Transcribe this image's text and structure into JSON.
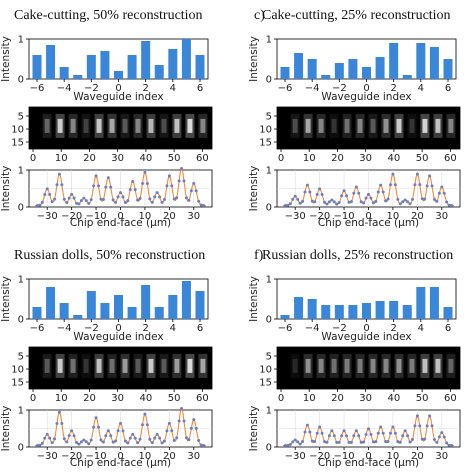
{
  "chart_data": [
    {
      "panel_label": "",
      "title": "Cake-cutting,  50% reconstruction",
      "type": "bar",
      "bar": {
        "x": [
          -6,
          -5,
          -4,
          -3,
          -2,
          -1,
          0,
          1,
          2,
          3,
          4,
          5,
          6
        ],
        "values": [
          0.6,
          0.85,
          0.3,
          0.1,
          0.6,
          0.7,
          0.2,
          0.6,
          0.95,
          0.35,
          0.75,
          1.0,
          0.6
        ],
        "xlabel": "Waveguide index",
        "ylabel": "Intensity",
        "ylim": [
          0,
          1
        ],
        "xticks": [
          "-6",
          "-4",
          "-2",
          "0",
          "2",
          "4",
          "6"
        ],
        "yticks": [
          "0",
          "1"
        ]
      },
      "image": {
        "type": "heatmap",
        "columns": [
          0.4,
          0.92,
          0.55,
          0.25,
          0.88,
          0.7,
          0.35,
          0.55,
          0.8,
          0.3,
          0.85,
          1.0,
          0.55
        ],
        "xticks": [
          "0",
          "10",
          "20",
          "30",
          "40",
          "50",
          "60"
        ],
        "yticks": [
          "5",
          "10",
          "15"
        ]
      },
      "profile": {
        "type": "line",
        "xlabel": "Chip end-face (μm)",
        "ylabel": "Intensity",
        "ylim": [
          0,
          1
        ],
        "xticks": [
          "-30",
          "-20",
          "-10",
          "0",
          "10",
          "20",
          "30"
        ],
        "yticks": [
          "0",
          "1"
        ],
        "peaks": [
          {
            "x": -30,
            "value": 0.45
          },
          {
            "x": -25,
            "value": 0.85
          },
          {
            "x": -20,
            "value": 0.3
          },
          {
            "x": -15,
            "value": 0.2
          },
          {
            "x": -10,
            "value": 0.8
          },
          {
            "x": -5,
            "value": 0.75
          },
          {
            "x": 0,
            "value": 0.35
          },
          {
            "x": 5,
            "value": 0.65
          },
          {
            "x": 10,
            "value": 0.9
          },
          {
            "x": 15,
            "value": 0.35
          },
          {
            "x": 20,
            "value": 0.8
          },
          {
            "x": 25,
            "value": 1.0
          },
          {
            "x": 30,
            "value": 0.6
          }
        ]
      }
    },
    {
      "panel_label": "c)",
      "title": "Cake-cutting,  25% reconstruction",
      "type": "bar",
      "bar": {
        "x": [
          -6,
          -5,
          -4,
          -3,
          -2,
          -1,
          0,
          1,
          2,
          3,
          4,
          5,
          6
        ],
        "values": [
          0.3,
          0.65,
          0.5,
          0.1,
          0.4,
          0.5,
          0.3,
          0.55,
          0.9,
          0.1,
          0.9,
          0.8,
          0.5
        ],
        "xlabel": "Waveguide index",
        "ylabel": "Intensity",
        "ylim": [
          0,
          1
        ],
        "xticks": [
          "-6",
          "-4",
          "-2",
          "0",
          "2",
          "4",
          "6"
        ],
        "yticks": [
          "0",
          "1"
        ]
      },
      "image": {
        "type": "heatmap",
        "columns": [
          0.3,
          0.7,
          0.55,
          0.2,
          0.45,
          0.55,
          0.35,
          0.6,
          0.9,
          0.2,
          0.95,
          0.85,
          0.55
        ],
        "xticks": [
          "0",
          "10",
          "20",
          "30",
          "40",
          "50",
          "60"
        ],
        "yticks": [
          "5",
          "10",
          "15"
        ]
      },
      "profile": {
        "type": "line",
        "xlabel": "Chip end-face (μm)",
        "ylabel": "Intensity",
        "ylim": [
          0,
          1
        ],
        "xticks": [
          "-30",
          "-20",
          "-10",
          "0",
          "10",
          "20",
          "30"
        ],
        "yticks": [
          "0",
          "1"
        ],
        "peaks": [
          {
            "x": -30,
            "value": 0.25
          },
          {
            "x": -25,
            "value": 0.55
          },
          {
            "x": -20,
            "value": 0.45
          },
          {
            "x": -15,
            "value": 0.15
          },
          {
            "x": -10,
            "value": 0.4
          },
          {
            "x": -5,
            "value": 0.5
          },
          {
            "x": 0,
            "value": 0.3
          },
          {
            "x": 5,
            "value": 0.55
          },
          {
            "x": 10,
            "value": 0.85
          },
          {
            "x": 15,
            "value": 0.15
          },
          {
            "x": 20,
            "value": 0.85
          },
          {
            "x": 25,
            "value": 0.8
          },
          {
            "x": 30,
            "value": 0.5
          }
        ]
      }
    },
    {
      "panel_label": "",
      "title": "Russian dolls,  50% reconstruction",
      "type": "bar",
      "bar": {
        "x": [
          -6,
          -5,
          -4,
          -3,
          -2,
          -1,
          0,
          1,
          2,
          3,
          4,
          5,
          6
        ],
        "values": [
          0.3,
          0.8,
          0.4,
          0.1,
          0.7,
          0.4,
          0.6,
          0.3,
          0.85,
          0.3,
          0.6,
          0.95,
          0.7
        ],
        "xlabel": "Waveguide index",
        "ylabel": "Intensity",
        "ylim": [
          0,
          1
        ],
        "xticks": [
          "-6",
          "-4",
          "-2",
          "0",
          "2",
          "4",
          "6"
        ],
        "yticks": [
          "0",
          "1"
        ]
      },
      "image": {
        "type": "heatmap",
        "columns": [
          0.35,
          0.9,
          0.45,
          0.2,
          0.85,
          0.45,
          0.65,
          0.35,
          0.9,
          0.35,
          0.65,
          1.0,
          0.7
        ],
        "xticks": [
          "0",
          "10",
          "20",
          "30",
          "40",
          "50",
          "60"
        ],
        "yticks": [
          "5",
          "10",
          "15"
        ]
      },
      "profile": {
        "type": "line",
        "xlabel": "Chip end-face (μm)",
        "ylabel": "Intensity",
        "ylim": [
          0,
          1
        ],
        "xticks": [
          "-30",
          "-20",
          "-10",
          "0",
          "10",
          "20",
          "30"
        ],
        "yticks": [
          "0",
          "1"
        ],
        "peaks": [
          {
            "x": -30,
            "value": 0.3
          },
          {
            "x": -25,
            "value": 0.9
          },
          {
            "x": -20,
            "value": 0.4
          },
          {
            "x": -15,
            "value": 0.15
          },
          {
            "x": -10,
            "value": 0.75
          },
          {
            "x": -5,
            "value": 0.4
          },
          {
            "x": 0,
            "value": 0.6
          },
          {
            "x": 5,
            "value": 0.3
          },
          {
            "x": 10,
            "value": 0.85
          },
          {
            "x": 15,
            "value": 0.3
          },
          {
            "x": 20,
            "value": 0.6
          },
          {
            "x": 25,
            "value": 1.0
          },
          {
            "x": 30,
            "value": 0.7
          }
        ]
      }
    },
    {
      "panel_label": "f)",
      "title": "Russian dolls,  25% reconstruction",
      "type": "bar",
      "bar": {
        "x": [
          -6,
          -5,
          -4,
          -3,
          -2,
          -1,
          0,
          1,
          2,
          3,
          4,
          5,
          6
        ],
        "values": [
          0.1,
          0.55,
          0.5,
          0.35,
          0.35,
          0.35,
          0.4,
          0.45,
          0.45,
          0.35,
          0.8,
          0.8,
          0.3
        ],
        "xlabel": "Waveguide index",
        "ylabel": "Intensity",
        "ylim": [
          0,
          1
        ],
        "xticks": [
          "-6",
          "-4",
          "-2",
          "0",
          "2",
          "4",
          "6"
        ],
        "yticks": [
          "0",
          "1"
        ]
      },
      "image": {
        "type": "heatmap",
        "columns": [
          0.15,
          0.6,
          0.55,
          0.45,
          0.5,
          0.5,
          0.55,
          0.55,
          0.6,
          0.5,
          0.85,
          0.85,
          0.4
        ],
        "xticks": [
          "0",
          "10",
          "20",
          "30",
          "40",
          "50",
          "60"
        ],
        "yticks": [
          "5",
          "10",
          "15"
        ]
      },
      "profile": {
        "type": "line",
        "xlabel": "Chip end-face (μm)",
        "ylabel": "Intensity",
        "ylim": [
          0,
          1
        ],
        "xticks": [
          "-30",
          "-20",
          "-10",
          "0",
          "10",
          "20",
          "30"
        ],
        "yticks": [
          "0",
          "1"
        ],
        "peaks": [
          {
            "x": -30,
            "value": 0.15
          },
          {
            "x": -25,
            "value": 0.55
          },
          {
            "x": -20,
            "value": 0.5
          },
          {
            "x": -15,
            "value": 0.4
          },
          {
            "x": -10,
            "value": 0.4
          },
          {
            "x": -5,
            "value": 0.4
          },
          {
            "x": 0,
            "value": 0.45
          },
          {
            "x": 5,
            "value": 0.5
          },
          {
            "x": 10,
            "value": 0.5
          },
          {
            "x": 15,
            "value": 0.4
          },
          {
            "x": 20,
            "value": 0.8
          },
          {
            "x": 25,
            "value": 0.8
          },
          {
            "x": 30,
            "value": 0.35
          }
        ]
      }
    }
  ],
  "colors": {
    "bar": "#3a86d9",
    "curve": "#ee8a3c",
    "point": "#6f7fb8",
    "grid": "#dddddd"
  }
}
